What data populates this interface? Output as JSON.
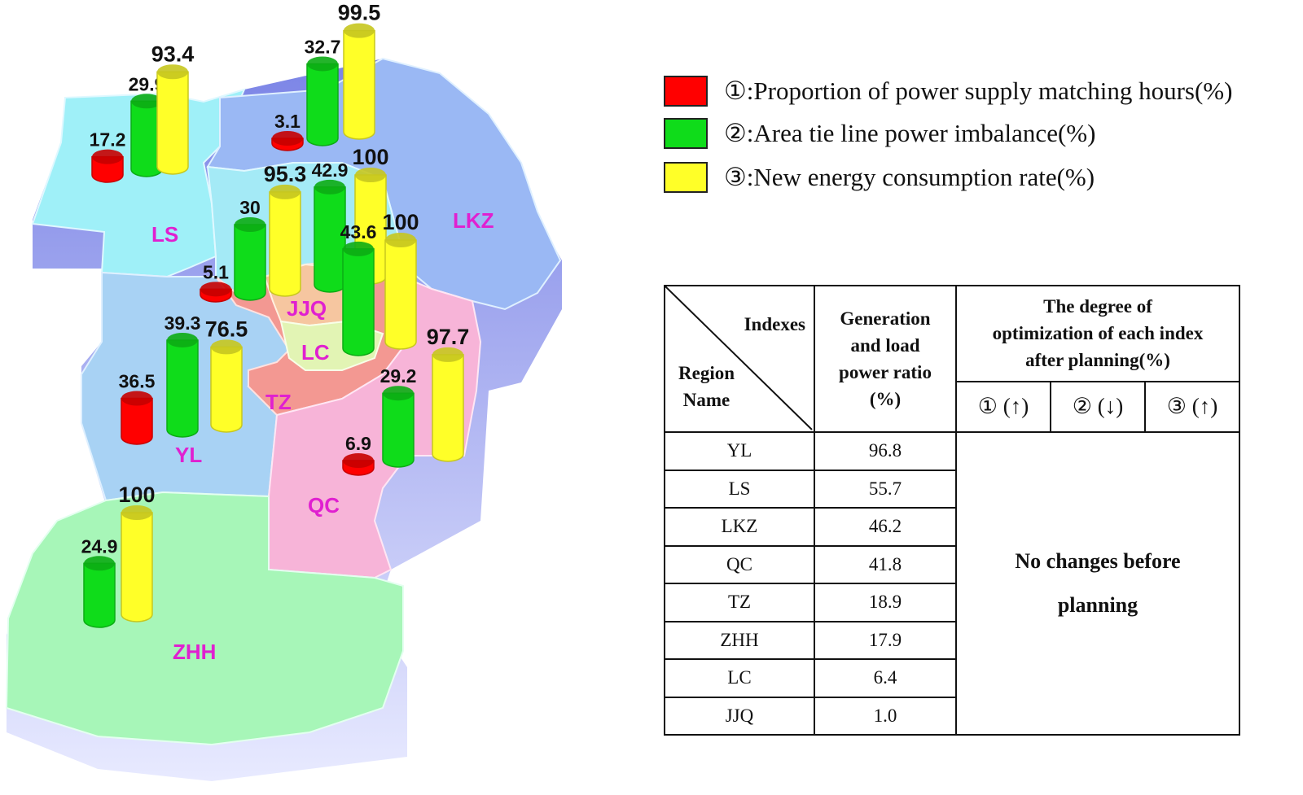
{
  "map": {
    "regions": [
      {
        "name": "LS",
        "color": "#9ff0f8"
      },
      {
        "name": "LKZ",
        "color": "#9ab8f4"
      },
      {
        "name": "JJQ",
        "color": "#f6c6a0"
      },
      {
        "name": "LC",
        "color": "#e2f4b4"
      },
      {
        "name": "TZ",
        "color": "#f39892"
      },
      {
        "name": "YL",
        "color": "#a8d2f4"
      },
      {
        "name": "QC",
        "color": "#f7b4d8"
      },
      {
        "name": "ZHH",
        "color": "#a7f6b8"
      }
    ],
    "label_color": "#e020d0",
    "bar_colors": {
      "index1": "#ff0000",
      "index2": "#0fdc1a",
      "index3": "#ffff28"
    },
    "bars": {
      "LS": {
        "index1": 17.2,
        "index2": 29.9,
        "index3": 93.4
      },
      "LKZ": {
        "index1": 3.1,
        "index2": 32.7,
        "index3": 99.5
      },
      "JJQ": {
        "index1": 5.1,
        "index2": 30,
        "index3": 95.3
      },
      "JJQ2": {
        "index2": 42.9,
        "index3": 100
      },
      "LC": {
        "index2": 43.6,
        "index3": 100
      },
      "YL": {
        "index1": 36.5,
        "index2": 39.3,
        "index3": 76.5
      },
      "QC": {
        "index1": 6.9,
        "index2": 29.2,
        "index3": 97.7
      },
      "ZHH": {
        "index2": 24.9,
        "index3": 100
      }
    }
  },
  "legend": [
    {
      "color": "#ff0000",
      "label": "①:Proportion of power supply matching hours(%)"
    },
    {
      "color": "#0fdc1a",
      "label": "②:Area tie line power imbalance(%)"
    },
    {
      "color": "#ffff28",
      "label": "③:New energy consumption rate(%)"
    }
  ],
  "table": {
    "corner_top": "Indexes",
    "corner_bottom_1": "Region",
    "corner_bottom_2": "Name",
    "col2": [
      "Generation",
      "and load",
      "power ratio",
      "(%)"
    ],
    "col3": [
      "The degree of",
      "optimization of each index",
      "after planning(%)"
    ],
    "subcols": [
      "① (↑)",
      "② (↓)",
      "③ (↑)"
    ],
    "rows": [
      {
        "region": "YL",
        "ratio": "96.8"
      },
      {
        "region": "LS",
        "ratio": "55.7"
      },
      {
        "region": "LKZ",
        "ratio": "46.2"
      },
      {
        "region": "QC",
        "ratio": "41.8"
      },
      {
        "region": "TZ",
        "ratio": "18.9"
      },
      {
        "region": "ZHH",
        "ratio": "17.9"
      },
      {
        "region": "LC",
        "ratio": "6.4"
      },
      {
        "region": "JJQ",
        "ratio": "1.0"
      }
    ],
    "merged_1": "No changes before",
    "merged_2": "planning"
  }
}
